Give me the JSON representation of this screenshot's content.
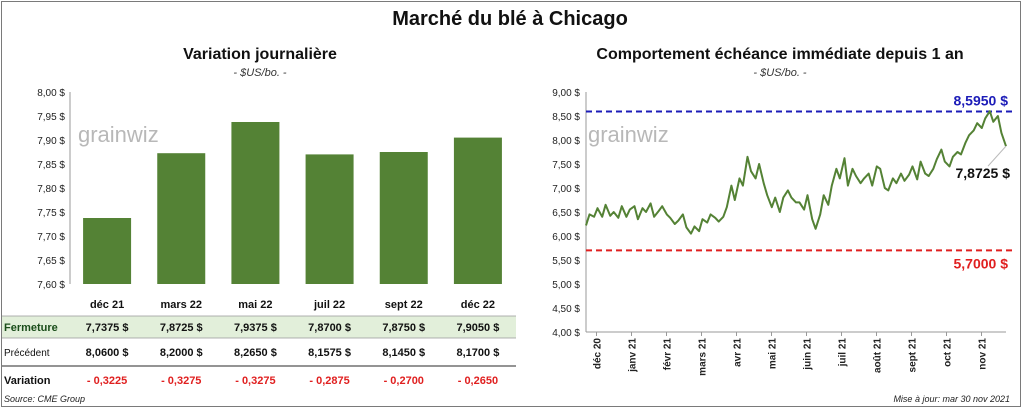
{
  "title": "Marché du blé à Chicago",
  "left_chart": {
    "title": "Variation journalière",
    "subtitle": "- $US/bo. -",
    "watermark": "grainwiz",
    "row_labels": {
      "close": "Fermeture",
      "previous": "Précédent",
      "change": "Variation"
    }
  },
  "right_chart": {
    "title": "Comportement échéance immédiate depuis 1 an",
    "subtitle": "- $US/bo. -",
    "watermark": "grainwiz"
  },
  "footer": {
    "source": "Source: CME Group",
    "updated": "Mise à jour: mar 30 nov 2021"
  },
  "colors": {
    "bar": "#548235",
    "line": "#548235",
    "high": "#1c1cb8",
    "low": "#e02020",
    "close_row": "#e2efda",
    "negative": "#e02020"
  },
  "chart_data": [
    {
      "type": "bar",
      "categories": [
        "déc 21",
        "mars 22",
        "mai 22",
        "juil 22",
        "sept 22",
        "déc 22"
      ],
      "values": [
        7.7375,
        7.8725,
        7.9375,
        7.87,
        7.875,
        7.905
      ],
      "ylim": [
        7.6,
        8.0
      ],
      "yticks": [
        "7,60 $",
        "7,65 $",
        "7,70 $",
        "7,75 $",
        "7,80 $",
        "7,85 $",
        "7,90 $",
        "7,95 $",
        "8,00 $"
      ],
      "table": {
        "close": [
          "7,7375  $",
          "7,8725  $",
          "7,9375  $",
          "7,8700  $",
          "7,8750  $",
          "7,9050  $"
        ],
        "previous": [
          "8,0600  $",
          "8,2000  $",
          "8,2650  $",
          "8,1575  $",
          "8,1450  $",
          "8,1700  $"
        ],
        "change": [
          "- 0,3225",
          "- 0,3275",
          "- 0,3275",
          "- 0,2875",
          "- 0,2700",
          "- 0,2650"
        ]
      },
      "grid": false
    },
    {
      "type": "line",
      "series": [
        {
          "x": [
            "2020-12-01",
            "2020-12-04",
            "2020-12-08",
            "2020-12-11",
            "2020-12-15",
            "2020-12-18",
            "2020-12-22",
            "2020-12-25",
            "2020-12-29",
            "2021-01-01",
            "2021-01-05",
            "2021-01-08",
            "2021-01-12",
            "2021-01-15",
            "2021-01-19",
            "2021-01-22",
            "2021-01-26",
            "2021-01-29",
            "2021-02-02",
            "2021-02-05",
            "2021-02-09",
            "2021-02-12",
            "2021-02-16",
            "2021-02-19",
            "2021-02-23",
            "2021-02-26",
            "2021-03-02",
            "2021-03-05",
            "2021-03-09",
            "2021-03-12",
            "2021-03-16",
            "2021-03-19",
            "2021-03-23",
            "2021-03-26",
            "2021-03-30",
            "2021-04-02",
            "2021-04-06",
            "2021-04-09",
            "2021-04-13",
            "2021-04-16",
            "2021-04-20",
            "2021-04-23",
            "2021-04-27",
            "2021-04-30",
            "2021-05-04",
            "2021-05-07",
            "2021-05-11",
            "2021-05-14",
            "2021-05-18",
            "2021-05-21",
            "2021-05-25",
            "2021-05-28",
            "2021-06-01",
            "2021-06-04",
            "2021-06-08",
            "2021-06-11",
            "2021-06-15",
            "2021-06-18",
            "2021-06-22",
            "2021-06-25",
            "2021-06-29",
            "2021-07-02",
            "2021-07-06",
            "2021-07-09",
            "2021-07-13",
            "2021-07-16",
            "2021-07-20",
            "2021-07-23",
            "2021-07-27",
            "2021-07-30",
            "2021-08-03",
            "2021-08-06",
            "2021-08-10",
            "2021-08-13",
            "2021-08-17",
            "2021-08-20",
            "2021-08-24",
            "2021-08-27",
            "2021-08-31",
            "2021-09-03",
            "2021-09-07",
            "2021-09-10",
            "2021-09-14",
            "2021-09-17",
            "2021-09-21",
            "2021-09-24",
            "2021-09-28",
            "2021-10-01",
            "2021-10-05",
            "2021-10-08",
            "2021-10-12",
            "2021-10-15",
            "2021-10-19",
            "2021-10-22",
            "2021-10-26",
            "2021-10-29",
            "2021-11-02",
            "2021-11-05",
            "2021-11-09",
            "2021-11-12",
            "2021-11-16",
            "2021-11-19",
            "2021-11-23",
            "2021-11-26",
            "2021-11-30"
          ],
          "values": [
            6.22,
            6.45,
            6.4,
            6.58,
            6.4,
            6.65,
            6.42,
            6.5,
            6.38,
            6.62,
            6.4,
            6.55,
            6.62,
            6.35,
            6.58,
            6.5,
            6.68,
            6.4,
            6.52,
            6.62,
            6.45,
            6.38,
            6.25,
            6.32,
            6.45,
            6.18,
            6.05,
            6.2,
            6.1,
            6.35,
            6.28,
            6.45,
            6.38,
            6.3,
            6.4,
            6.6,
            7.05,
            6.75,
            7.2,
            7.05,
            7.65,
            7.35,
            7.2,
            7.5,
            7.1,
            6.85,
            6.6,
            6.8,
            6.5,
            6.8,
            6.95,
            6.8,
            6.7,
            6.7,
            6.55,
            6.85,
            6.35,
            6.15,
            6.45,
            6.85,
            6.65,
            7.05,
            7.4,
            7.2,
            7.62,
            7.05,
            7.4,
            7.25,
            7.1,
            7.2,
            7.3,
            7.05,
            7.45,
            7.4,
            7.0,
            6.95,
            7.2,
            7.1,
            7.3,
            7.15,
            7.28,
            7.45,
            7.18,
            7.55,
            7.3,
            7.25,
            7.4,
            7.6,
            7.8,
            7.55,
            7.45,
            7.65,
            7.75,
            7.7,
            7.95,
            8.1,
            8.2,
            8.35,
            8.25,
            8.45,
            8.6,
            8.38,
            8.5,
            8.15,
            7.87
          ]
        }
      ],
      "ylim": [
        4.0,
        9.0
      ],
      "yticks": [
        "4,00 $",
        "4,50 $",
        "5,00 $",
        "5,50 $",
        "6,00 $",
        "6,50 $",
        "7,00 $",
        "7,50 $",
        "8,00 $",
        "8,50 $",
        "9,00 $"
      ],
      "xticks": [
        "déc 20",
        "janv 21",
        "févr 21",
        "mars 21",
        "avr 21",
        "mai 21",
        "juin 21",
        "juil 21",
        "août 21",
        "sept 21",
        "oct 21",
        "nov 21"
      ],
      "high": {
        "value": 8.595,
        "label": "8,5950  $"
      },
      "low": {
        "value": 5.7,
        "label": "5,7000  $"
      },
      "last": {
        "value": 7.8725,
        "label": "7,8725  $"
      },
      "grid": false
    }
  ]
}
